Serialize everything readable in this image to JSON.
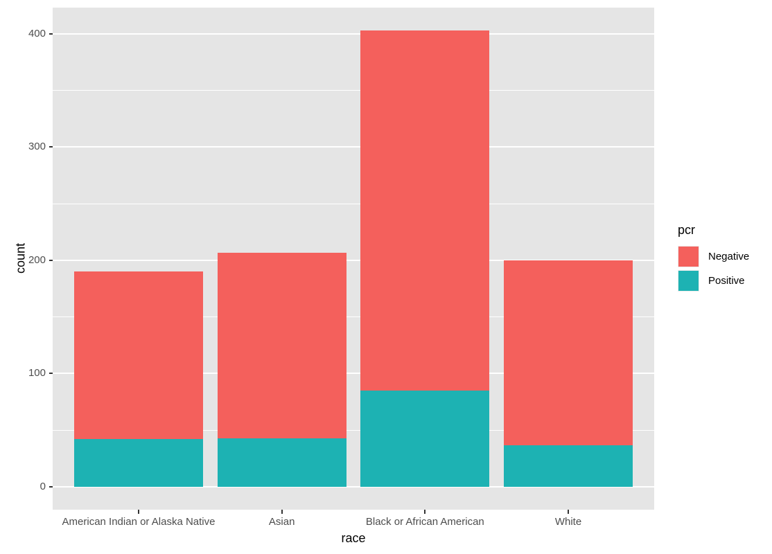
{
  "chart_data": {
    "type": "bar",
    "stacked": true,
    "xlabel": "race",
    "ylabel": "count",
    "categories": [
      "American Indian or Alaska Native",
      "Asian",
      "Black or African American",
      "White"
    ],
    "series": [
      {
        "name": "Negative",
        "color": "#F4605C",
        "values": [
          148,
          164,
          318,
          163
        ]
      },
      {
        "name": "Positive",
        "color": "#1DB2B3",
        "values": [
          42,
          43,
          85,
          37
        ]
      }
    ],
    "stack_order_bottom_to_top": [
      "Positive",
      "Negative"
    ],
    "totals": [
      190,
      207,
      403,
      200
    ],
    "y_ticks": [
      0,
      100,
      200,
      300,
      400
    ],
    "y_minor_ticks": [
      50,
      150,
      250,
      350
    ],
    "ylim": [
      -20.15,
      423.15
    ],
    "legend": {
      "title": "pcr",
      "entries": [
        "Negative",
        "Positive"
      ],
      "position": "right"
    },
    "style": {
      "panel_background": "#E5E5E5",
      "grid_color": "#FFFFFF",
      "axis_text_color": "#4D4D4D",
      "axis_title_color": "#000000",
      "tick_mark_color": "#333333"
    }
  }
}
